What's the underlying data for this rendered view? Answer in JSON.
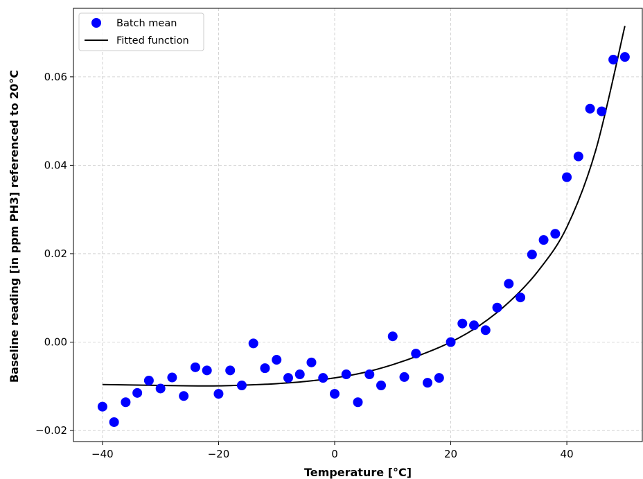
{
  "chart_data": {
    "type": "scatter",
    "xlabel": "Temperature [°C]",
    "ylabel": "Baseline reading [in ppm PH3] referenced to 20°C",
    "xlim": [
      -45,
      53
    ],
    "ylim": [
      -0.0225,
      0.0755
    ],
    "xticks": [
      -40,
      -20,
      0,
      20,
      40
    ],
    "xtick_labels": [
      "−40",
      "−20",
      "0",
      "20",
      "40"
    ],
    "yticks": [
      -0.02,
      0.0,
      0.02,
      0.04,
      0.06
    ],
    "ytick_labels": [
      "−0.02",
      "0.00",
      "0.02",
      "0.04",
      "0.06"
    ],
    "grid": true,
    "legend_position": "top-left",
    "colors": {
      "scatter": "#0000ff",
      "line": "#000000",
      "grid": "#b0b0b0"
    },
    "series": [
      {
        "name": "Batch mean",
        "kind": "scatter",
        "points": [
          {
            "x": -40,
            "y": -0.0146
          },
          {
            "x": -38,
            "y": -0.0181
          },
          {
            "x": -36,
            "y": -0.0136
          },
          {
            "x": -34,
            "y": -0.0115
          },
          {
            "x": -32,
            "y": -0.0087
          },
          {
            "x": -30,
            "y": -0.0105
          },
          {
            "x": -28,
            "y": -0.008
          },
          {
            "x": -26,
            "y": -0.0122
          },
          {
            "x": -24,
            "y": -0.0057
          },
          {
            "x": -22,
            "y": -0.0064
          },
          {
            "x": -20,
            "y": -0.0117
          },
          {
            "x": -18,
            "y": -0.0064
          },
          {
            "x": -16,
            "y": -0.0098
          },
          {
            "x": -14,
            "y": -0.0003
          },
          {
            "x": -12,
            "y": -0.0059
          },
          {
            "x": -10,
            "y": -0.004
          },
          {
            "x": -8,
            "y": -0.0081
          },
          {
            "x": -6,
            "y": -0.0073
          },
          {
            "x": -4,
            "y": -0.0046
          },
          {
            "x": -2,
            "y": -0.0081
          },
          {
            "x": 0,
            "y": -0.0117
          },
          {
            "x": 2,
            "y": -0.0073
          },
          {
            "x": 4,
            "y": -0.0136
          },
          {
            "x": 6,
            "y": -0.0073
          },
          {
            "x": 8,
            "y": -0.0098
          },
          {
            "x": 10,
            "y": 0.0013
          },
          {
            "x": 12,
            "y": -0.0079
          },
          {
            "x": 14,
            "y": -0.0026
          },
          {
            "x": 16,
            "y": -0.0092
          },
          {
            "x": 18,
            "y": -0.0081
          },
          {
            "x": 20,
            "y": 0.0
          },
          {
            "x": 22,
            "y": 0.0042
          },
          {
            "x": 24,
            "y": 0.0038
          },
          {
            "x": 26,
            "y": 0.0027
          },
          {
            "x": 28,
            "y": 0.0078
          },
          {
            "x": 30,
            "y": 0.0132
          },
          {
            "x": 32,
            "y": 0.0101
          },
          {
            "x": 34,
            "y": 0.0198
          },
          {
            "x": 36,
            "y": 0.0231
          },
          {
            "x": 38,
            "y": 0.0245
          },
          {
            "x": 40,
            "y": 0.0373
          },
          {
            "x": 42,
            "y": 0.042
          },
          {
            "x": 44,
            "y": 0.0528
          },
          {
            "x": 46,
            "y": 0.0522
          },
          {
            "x": 48,
            "y": 0.0639
          },
          {
            "x": 50,
            "y": 0.0645
          }
        ]
      },
      {
        "name": "Fitted function",
        "kind": "line",
        "points": [
          {
            "x": -40,
            "y": -0.0096
          },
          {
            "x": -35,
            "y": -0.0097
          },
          {
            "x": -30,
            "y": -0.0098
          },
          {
            "x": -25,
            "y": -0.0099
          },
          {
            "x": -20,
            "y": -0.0099
          },
          {
            "x": -15,
            "y": -0.0097
          },
          {
            "x": -10,
            "y": -0.0094
          },
          {
            "x": -5,
            "y": -0.0089
          },
          {
            "x": 0,
            "y": -0.0081
          },
          {
            "x": 5,
            "y": -0.0069
          },
          {
            "x": 10,
            "y": -0.0051
          },
          {
            "x": 15,
            "y": -0.0028
          },
          {
            "x": 20,
            "y": 0.0
          },
          {
            "x": 25,
            "y": 0.0038
          },
          {
            "x": 30,
            "y": 0.009
          },
          {
            "x": 35,
            "y": 0.016
          },
          {
            "x": 40,
            "y": 0.026
          },
          {
            "x": 45,
            "y": 0.0435
          },
          {
            "x": 50,
            "y": 0.0715
          }
        ]
      }
    ]
  }
}
